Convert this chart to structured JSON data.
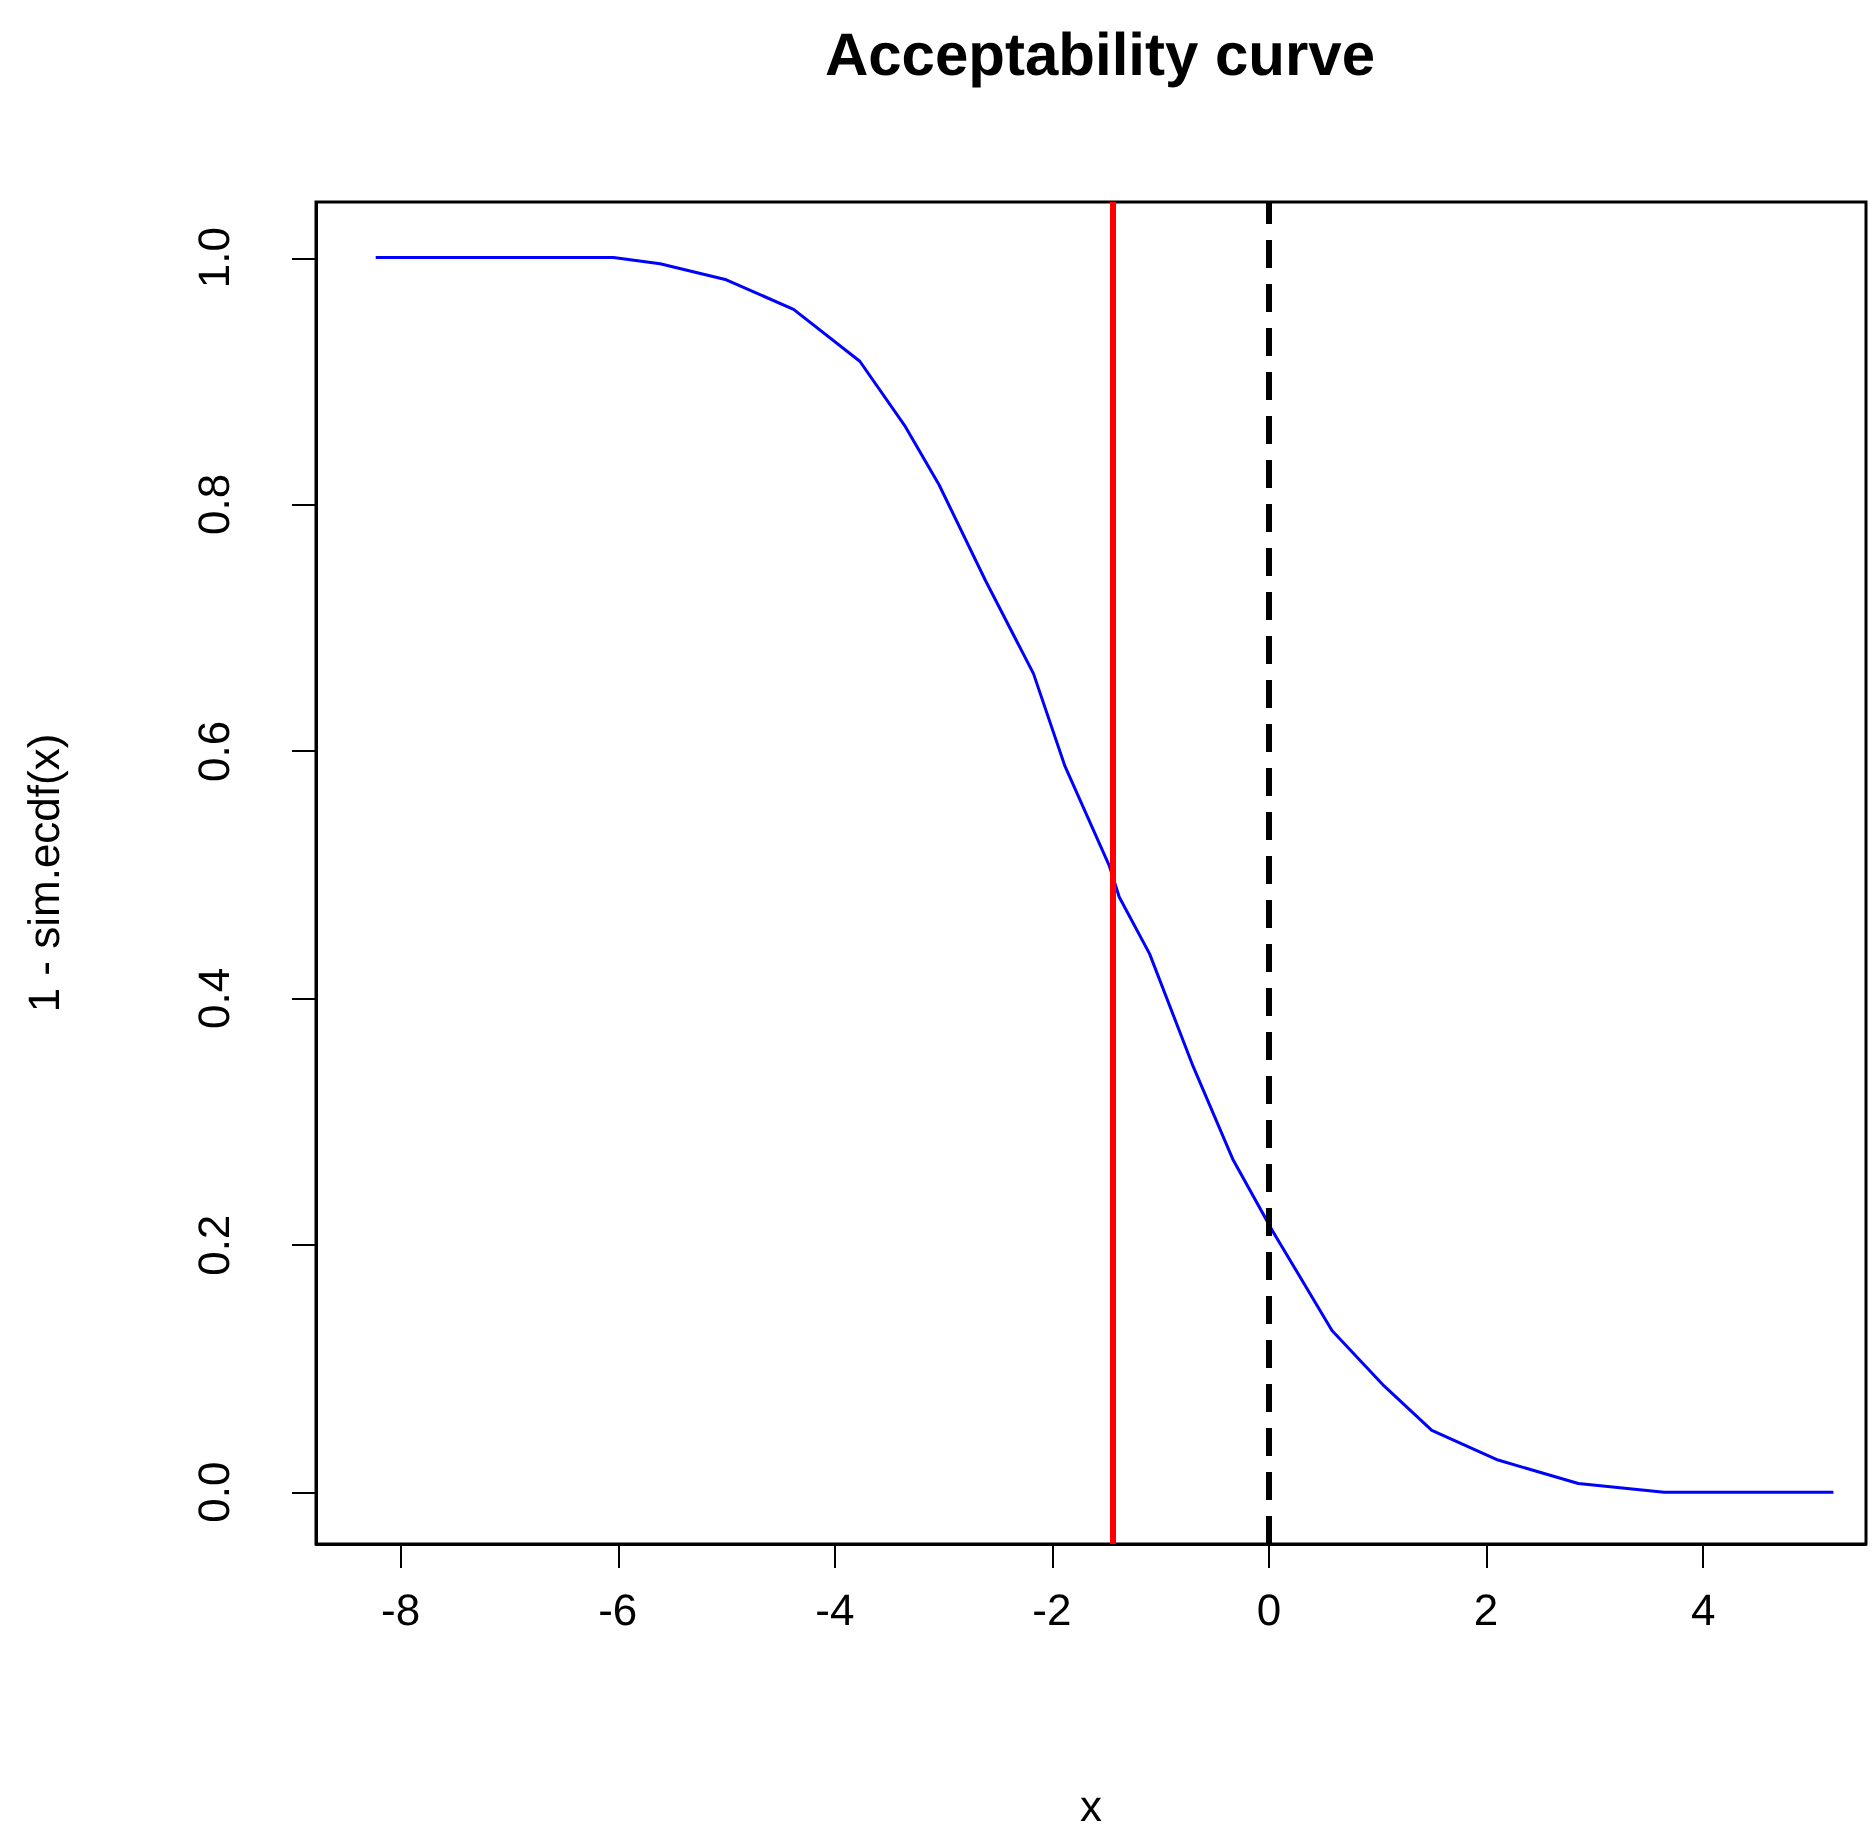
{
  "chart_data": {
    "type": "line",
    "title": "Acceptability curve",
    "xlabel": "x",
    "ylabel": "1 - sim.ecdf(x)",
    "x": [
      -8.23,
      -6.04,
      -5.61,
      -5.0,
      -4.38,
      -3.77,
      -3.35,
      -3.04,
      -2.61,
      -2.17,
      -1.88,
      -1.47,
      -1.38,
      -1.1,
      -0.7,
      -0.33,
      0.03,
      0.58,
      1.06,
      1.5,
      2.11,
      2.85,
      3.64,
      5.2
    ],
    "series": [
      {
        "color": "#0000ff",
        "values": [
          1.0,
          1.0,
          0.995,
          0.982,
          0.958,
          0.916,
          0.863,
          0.816,
          0.738,
          0.663,
          0.588,
          0.507,
          0.482,
          0.436,
          0.345,
          0.269,
          0.212,
          0.131,
          0.086,
          0.05,
          0.026,
          0.007,
          0.0,
          0.0
        ]
      }
    ],
    "xlim": [
      -8.78,
      5.5
    ],
    "xticks": [
      -8,
      -6,
      -4,
      -2,
      0,
      2,
      4
    ],
    "ylim": [
      -0.042,
      1.045
    ],
    "yticks": [
      {
        "value": 0,
        "label": "0.0"
      },
      0.2,
      0.4,
      0.6,
      0.8,
      {
        "value": 1,
        "label": "1.0"
      }
    ],
    "ref_lines": [
      {
        "axis": "x",
        "value": -1.44,
        "color": "#ff0000",
        "line_style": "solid"
      },
      {
        "axis": "x",
        "value": 0,
        "color": "#000000",
        "line_style": "dashed"
      }
    ],
    "grid": false,
    "marker": "none",
    "line_style": "solid"
  }
}
